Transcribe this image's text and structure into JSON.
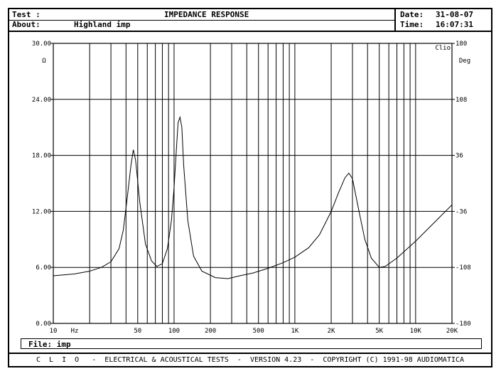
{
  "header": {
    "test_label": "Test :",
    "title": "IMPEDANCE RESPONSE",
    "about_label": "About:",
    "about_value": "Highland imp",
    "date_label": "Date:",
    "date_value": "31-08-07",
    "time_label": "Time:",
    "time_value": "16:07:31"
  },
  "file_line": "File: imp",
  "footer": "C  L  I  O   -  ELECTRICAL & ACOUSTICAL TESTS  -  VERSION 4.23  -  COPYRIGHT (C) 1991-98 AUDIOMATICA",
  "chart_data": {
    "type": "line",
    "title": "IMPEDANCE RESPONSE",
    "xscale": "log",
    "xlim": [
      10,
      20000
    ],
    "ylim": [
      0,
      30
    ],
    "ylabel": "Ω",
    "y2label": "Deg",
    "y2lim": [
      -180,
      180
    ],
    "corner_label": "Clio",
    "grid": true,
    "x_ticks": [
      10,
      50,
      100,
      200,
      500,
      1000,
      2000,
      5000,
      10000,
      20000
    ],
    "x_tick_labels": [
      "10",
      "50",
      "100",
      "200",
      "500",
      "1K",
      "2K",
      "5K",
      "10K",
      "20K"
    ],
    "x_unit_label": "Hz",
    "y_ticks": [
      0,
      6,
      12,
      18,
      24,
      30
    ],
    "y_tick_labels": [
      "0.00",
      "6.00",
      "12.00",
      "18.00",
      "24.00",
      "30.00"
    ],
    "y2_ticks": [
      -180,
      -108,
      -36,
      36,
      108,
      180
    ],
    "y2_tick_labels": [
      "-180",
      "-108",
      "-36",
      "36",
      "108",
      "180"
    ],
    "series": [
      {
        "x": [
          10,
          15,
          20,
          25,
          30,
          35,
          38,
          41,
          44,
          46,
          48,
          52,
          58,
          65,
          72,
          80,
          88,
          95,
          100,
          105,
          108,
          112,
          116,
          120,
          130,
          145,
          170,
          220,
          280,
          350,
          450,
          600,
          800,
          1000,
          1300,
          1600,
          2000,
          2300,
          2600,
          2800,
          3000,
          3400,
          3800,
          4300,
          5000,
          5600,
          7000,
          10000,
          14000,
          20000
        ],
        "y": [
          5.1,
          5.3,
          5.6,
          6.0,
          6.6,
          8.0,
          10.0,
          13.5,
          17.0,
          18.6,
          17.5,
          13.0,
          8.5,
          6.7,
          6.1,
          6.4,
          8.0,
          11.0,
          14.5,
          19.0,
          21.5,
          22.1,
          21.0,
          17.0,
          11.0,
          7.2,
          5.6,
          4.9,
          4.8,
          5.1,
          5.4,
          5.9,
          6.5,
          7.1,
          8.1,
          9.5,
          12.0,
          14.0,
          15.6,
          16.1,
          15.5,
          12.0,
          9.0,
          7.0,
          6.0,
          6.1,
          7.0,
          8.8,
          10.7,
          12.7
        ]
      }
    ]
  }
}
